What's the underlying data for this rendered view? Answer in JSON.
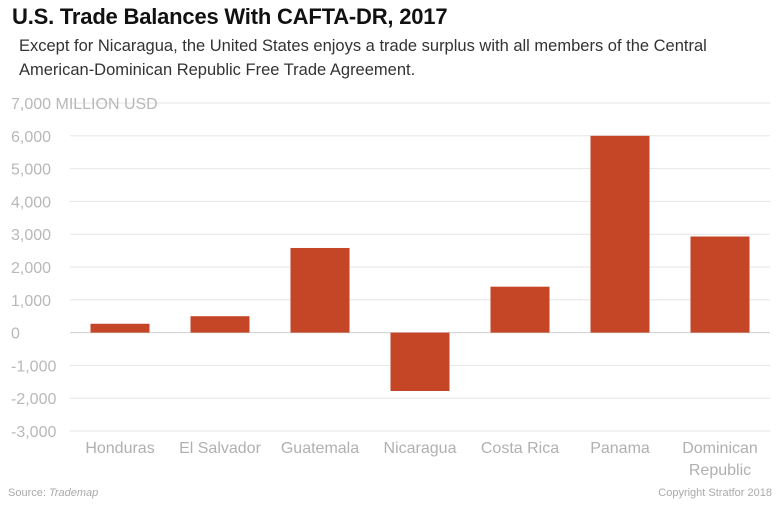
{
  "chart_data": {
    "type": "bar",
    "title": "U.S. Trade Balances With CAFTA-DR, 2017",
    "subtitle": "Except for Nicaragua, the United States enjoys a trade surplus with all members of the Central American-Dominican Republic Free Trade Agreement.",
    "ylabel": "MILLION USD",
    "categories": [
      "Honduras",
      "El Salvador",
      "Guatemala",
      "Nicaragua",
      "Costa Rica",
      "Panama",
      "Dominican Republic"
    ],
    "category_lines": [
      [
        "Honduras"
      ],
      [
        "El Salvador"
      ],
      [
        "Guatemala"
      ],
      [
        "Nicaragua"
      ],
      [
        "Costa Rica"
      ],
      [
        "Panama"
      ],
      [
        "Dominican",
        "Republic"
      ]
    ],
    "values": [
      270,
      500,
      2580,
      -1780,
      1400,
      6000,
      2930
    ],
    "ylim": [
      -3000,
      7000
    ],
    "yticks": [
      7000,
      6000,
      5000,
      4000,
      3000,
      2000,
      1000,
      0,
      -1000,
      -2000,
      -3000
    ],
    "ytick_labels": [
      "7,000 MILLION USD",
      "6,000",
      "5,000",
      "4,000",
      "3,000",
      "2,000",
      "1,000",
      "0",
      "-1,000",
      "-2,000",
      "-3,000"
    ],
    "grid": true,
    "bar_color": "#c44627"
  },
  "footer": {
    "source_prefix": "Source: ",
    "source_name": "Trademap",
    "copyright": "Copyright Stratfor 2018"
  }
}
